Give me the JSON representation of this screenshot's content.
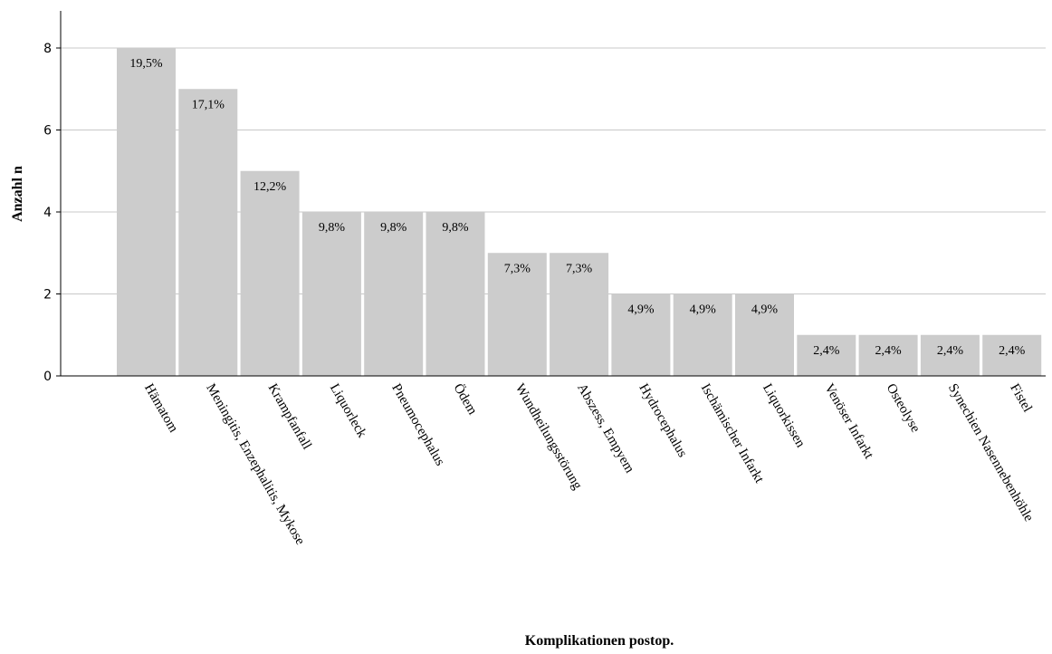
{
  "chart_data": {
    "type": "bar",
    "title": "",
    "xlabel": "Komplikationen postop.",
    "ylabel": "Anzahl n",
    "ylim": [
      0,
      8
    ],
    "yticks": [
      0,
      2,
      4,
      6,
      8
    ],
    "grid": true,
    "categories": [
      "Hämatom",
      "Meningitis, Enzephalitis, Mykose",
      "Krampfanfall",
      "Liquorleck",
      "Pneumocephalus",
      "Ödem",
      "Wundheilungsstörung",
      "Abszess, Empyem",
      "Hydrocephalus",
      "Ischämischer Infarkt",
      "Liquorkissen",
      "Venöser Infarkt",
      "Osteolyse",
      "Synechien Nasennebenhöhle",
      "Fistel"
    ],
    "values": [
      8,
      7,
      5,
      4,
      4,
      4,
      3,
      3,
      2,
      2,
      2,
      1,
      1,
      1,
      1
    ],
    "data_labels": [
      "19,5%",
      "17,1%",
      "12,2%",
      "9,8%",
      "9,8%",
      "9,8%",
      "7,3%",
      "7,3%",
      "4,9%",
      "4,9%",
      "4,9%",
      "2,4%",
      "2,4%",
      "2,4%",
      "2,4%"
    ],
    "colors": {
      "bar": "#cccccc",
      "grid": "#c8c8c8",
      "axis": "#000000"
    }
  }
}
